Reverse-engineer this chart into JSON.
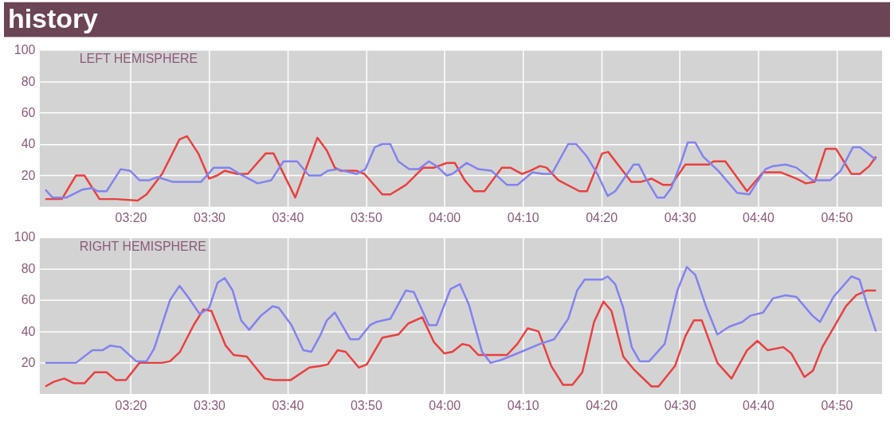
{
  "chart_data": [
    {
      "type": "line",
      "title": "history",
      "annotations": [
        "LEFT HEMISPHERE"
      ],
      "grid": true,
      "legend": false,
      "marker": "none",
      "xlim": [
        3.14,
        4.93
      ],
      "ylim": [
        0,
        100
      ],
      "xticks": [
        {
          "value": 3.3333,
          "label": "03:20"
        },
        {
          "value": 3.5,
          "label": "03:30"
        },
        {
          "value": 3.6667,
          "label": "03:40"
        },
        {
          "value": 3.8333,
          "label": "03:50"
        },
        {
          "value": 4,
          "label": "04:00"
        },
        {
          "value": 4.1667,
          "label": "04:10"
        },
        {
          "value": 4.3333,
          "label": "04:20"
        },
        {
          "value": 4.5,
          "label": "04:30"
        },
        {
          "value": 4.6667,
          "label": "04:40"
        },
        {
          "value": 4.8333,
          "label": "04:50"
        }
      ],
      "yticks": [
        {
          "value": 0,
          "label": null
        },
        20,
        40,
        60,
        80,
        100
      ],
      "series": [
        {
          "color": "#e8403f",
          "x": [
            3.152,
            3.187,
            3.217,
            3.235,
            3.267,
            3.302,
            3.348,
            3.367,
            3.4,
            3.437,
            3.453,
            3.477,
            3.5,
            3.517,
            3.533,
            3.56,
            3.582,
            3.62,
            3.637,
            3.683,
            3.73,
            3.75,
            3.767,
            3.78,
            3.813,
            3.83,
            3.868,
            3.885,
            3.918,
            3.955,
            3.978,
            4.005,
            4.022,
            4.043,
            4.063,
            4.085,
            4.122,
            4.14,
            4.165,
            4.182,
            4.203,
            4.217,
            4.242,
            4.287,
            4.303,
            4.335,
            4.348,
            4.397,
            4.418,
            4.44,
            4.465,
            4.482,
            4.512,
            4.562,
            4.572,
            4.597,
            4.643,
            4.677,
            4.715,
            4.748,
            4.768,
            4.787,
            4.81,
            4.832,
            4.865,
            4.883,
            4.903,
            4.917
          ],
          "values": [
            5,
            5,
            20,
            20,
            5,
            5,
            4,
            8,
            21,
            43,
            45,
            34,
            18,
            20,
            23,
            21,
            21,
            34,
            34,
            6,
            44,
            36,
            25,
            23,
            23,
            21,
            8,
            8,
            14,
            25,
            25,
            28,
            28,
            17,
            10,
            10,
            25,
            25,
            21,
            23,
            26,
            25,
            17,
            10,
            10,
            34,
            35,
            16,
            16,
            18,
            14,
            14,
            27,
            27,
            29,
            29,
            10,
            22,
            22,
            18,
            15,
            16,
            37,
            37,
            21,
            21,
            26,
            32
          ]
        },
        {
          "color": "#8282f0",
          "x": [
            3.152,
            3.167,
            3.197,
            3.23,
            3.252,
            3.263,
            3.282,
            3.312,
            3.332,
            3.352,
            3.373,
            3.39,
            3.422,
            3.483,
            3.51,
            3.543,
            3.565,
            3.603,
            3.632,
            3.658,
            3.687,
            3.712,
            3.737,
            3.752,
            3.773,
            3.813,
            3.832,
            3.852,
            3.868,
            3.885,
            3.902,
            3.925,
            3.945,
            3.967,
            3.983,
            4.005,
            4.017,
            4.047,
            4.072,
            4.1,
            4.133,
            4.155,
            4.187,
            4.21,
            4.228,
            4.263,
            4.28,
            4.303,
            4.325,
            4.347,
            4.363,
            4.402,
            4.413,
            4.43,
            4.452,
            4.467,
            4.482,
            4.5,
            4.517,
            4.533,
            4.55,
            4.582,
            4.622,
            4.648,
            4.682,
            4.698,
            4.725,
            4.748,
            4.782,
            4.82,
            4.842,
            4.868,
            4.883,
            4.917
          ],
          "values": [
            11,
            6,
            6,
            11,
            12,
            10,
            10,
            24,
            23,
            17,
            17,
            19,
            16,
            16,
            25,
            25,
            21,
            15,
            17,
            29,
            29,
            20,
            20,
            23,
            24,
            21,
            24,
            38,
            40,
            40,
            29,
            24,
            24,
            29,
            26,
            20,
            21,
            28,
            24,
            23,
            14,
            14,
            22,
            21,
            21,
            40,
            40,
            32,
            21,
            7,
            10,
            27,
            27,
            17,
            6,
            6,
            12,
            26,
            41,
            41,
            32,
            23,
            9,
            8,
            24,
            26,
            27,
            25,
            17,
            17,
            23,
            38,
            38,
            30
          ]
        }
      ]
    },
    {
      "type": "line",
      "annotations": [
        "RIGHT HEMISPHERE"
      ],
      "grid": true,
      "legend": false,
      "marker": "none",
      "xlim": [
        3.14,
        4.93
      ],
      "ylim": [
        0,
        100
      ],
      "xticks": [
        {
          "value": 3.3333,
          "label": "03:20"
        },
        {
          "value": 3.5,
          "label": "03:30"
        },
        {
          "value": 3.6667,
          "label": "03:40"
        },
        {
          "value": 3.8333,
          "label": "03:50"
        },
        {
          "value": 4,
          "label": "04:00"
        },
        {
          "value": 4.1667,
          "label": "04:10"
        },
        {
          "value": 4.3333,
          "label": "04:20"
        },
        {
          "value": 4.5,
          "label": "04:30"
        },
        {
          "value": 4.6667,
          "label": "04:40"
        },
        {
          "value": 4.8333,
          "label": "04:50"
        }
      ],
      "yticks": [
        {
          "value": 0,
          "label": null
        },
        20,
        40,
        60,
        80,
        100
      ],
      "series": [
        {
          "color": "#e8403f",
          "x": [
            3.152,
            3.17,
            3.192,
            3.213,
            3.235,
            3.257,
            3.282,
            3.302,
            3.323,
            3.352,
            3.4,
            3.417,
            3.438,
            3.467,
            3.488,
            3.505,
            3.535,
            3.552,
            3.58,
            3.618,
            3.637,
            3.673,
            3.713,
            3.737,
            3.752,
            3.773,
            3.79,
            3.818,
            3.835,
            3.868,
            3.902,
            3.923,
            3.953,
            3.978,
            4.0,
            4.017,
            4.038,
            4.053,
            4.072,
            4.133,
            4.155,
            4.177,
            4.2,
            4.227,
            4.252,
            4.272,
            4.293,
            4.318,
            4.338,
            4.355,
            4.38,
            4.402,
            4.44,
            4.455,
            4.49,
            4.512,
            4.53,
            4.547,
            4.58,
            4.61,
            4.643,
            4.665,
            4.687,
            4.72,
            4.737,
            4.765,
            4.783,
            4.803,
            4.832,
            4.853,
            4.875,
            4.897,
            4.917
          ],
          "values": [
            5,
            8,
            10,
            7,
            7,
            14,
            14,
            9,
            9,
            20,
            20,
            21,
            27,
            44,
            54,
            53,
            31,
            25,
            24,
            10,
            9,
            9,
            17,
            18,
            19,
            28,
            27,
            17,
            19,
            36,
            38,
            45,
            49,
            33,
            26,
            27,
            32,
            31,
            25,
            25,
            32,
            42,
            40,
            18,
            6,
            6,
            14,
            46,
            59,
            53,
            24,
            16,
            5,
            5,
            18,
            37,
            47,
            47,
            20,
            10,
            28,
            34,
            28,
            30,
            26,
            11,
            15,
            30,
            45,
            56,
            63,
            66,
            66
          ]
        },
        {
          "color": "#8282f0",
          "x": [
            3.152,
            3.217,
            3.252,
            3.273,
            3.29,
            3.312,
            3.345,
            3.367,
            3.383,
            3.417,
            3.437,
            3.455,
            3.48,
            3.5,
            3.518,
            3.533,
            3.55,
            3.568,
            3.585,
            3.61,
            3.635,
            3.648,
            3.675,
            3.7,
            3.717,
            3.737,
            3.75,
            3.767,
            3.8,
            3.818,
            3.842,
            3.855,
            3.885,
            3.918,
            3.935,
            3.967,
            3.983,
            4.013,
            4.033,
            4.052,
            4.08,
            4.098,
            4.122,
            4.155,
            4.203,
            4.233,
            4.263,
            4.282,
            4.298,
            4.335,
            4.347,
            4.363,
            4.38,
            4.398,
            4.415,
            4.435,
            4.468,
            4.495,
            4.515,
            4.533,
            4.557,
            4.58,
            4.605,
            4.633,
            4.65,
            4.677,
            4.698,
            4.725,
            4.748,
            4.782,
            4.798,
            4.827,
            4.865,
            4.882,
            4.898,
            4.917
          ],
          "values": [
            20,
            20,
            28,
            28,
            31,
            30,
            21,
            21,
            29,
            60,
            69,
            62,
            51,
            55,
            71,
            74,
            66,
            47,
            41,
            50,
            56,
            55,
            44,
            28,
            27,
            38,
            47,
            52,
            35,
            35,
            44,
            46,
            48,
            66,
            65,
            44,
            44,
            67,
            70,
            57,
            27,
            20,
            22,
            26,
            32,
            35,
            48,
            66,
            73,
            73,
            75,
            70,
            55,
            30,
            21,
            21,
            32,
            66,
            81,
            76,
            55,
            38,
            43,
            46,
            50,
            52,
            61,
            63,
            62,
            50,
            46,
            62,
            75,
            73,
            57,
            40
          ]
        }
      ]
    }
  ]
}
